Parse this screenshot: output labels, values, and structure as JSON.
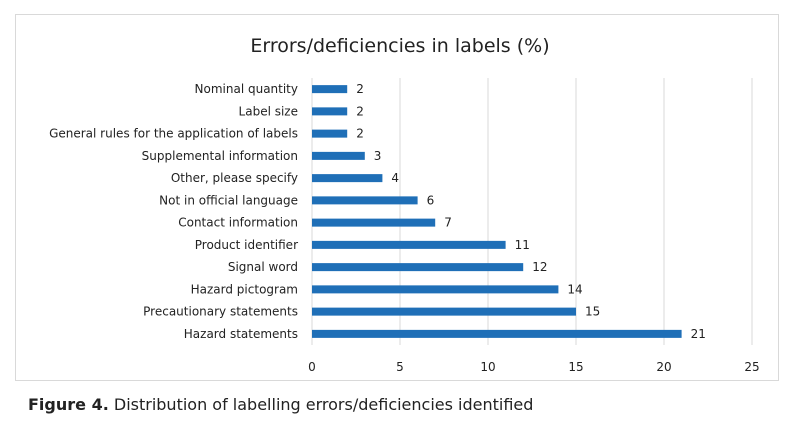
{
  "caption": {
    "label": "Figure 4.",
    "text": " Distribution of labelling errors/deficiencies identified"
  },
  "chart_data": {
    "type": "bar",
    "orientation": "horizontal",
    "title": "Errors/deficiencies in labels (%)",
    "categories": [
      "Nominal quantity",
      "Label size",
      "General rules for the application of labels",
      "Supplemental information",
      "Other, please specify",
      "Not in official language",
      "Contact information",
      "Product identifier",
      "Signal word",
      "Hazard pictogram",
      "Precautionary statements",
      "Hazard statements"
    ],
    "values": [
      2,
      2,
      2,
      3,
      4,
      6,
      7,
      11,
      12,
      14,
      15,
      21
    ],
    "data_labels": [
      "2",
      "2",
      "2",
      "3",
      "4",
      "6",
      "7",
      "11",
      "12",
      "14",
      "15",
      "21"
    ],
    "xlim": [
      0,
      25
    ],
    "xticks": [
      "0",
      "5",
      "10",
      "15",
      "20",
      "25"
    ],
    "grid": true,
    "legend": "none",
    "colors": {
      "bar": "#1f6fb7",
      "grid": "#d9d9d9",
      "text": "#222222"
    }
  }
}
